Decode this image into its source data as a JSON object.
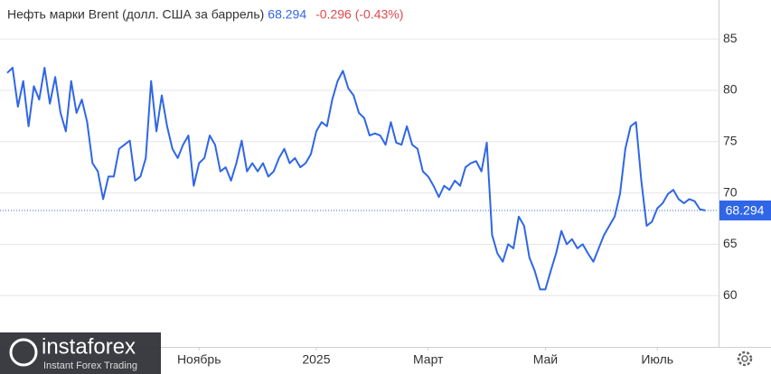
{
  "chart_data": {
    "type": "line",
    "title": "Нефть марки Brent (долл. США за баррель)",
    "last_price": "68.294",
    "change": "-0.296 (-0.43%)",
    "price_line": 68.294,
    "x": [
      0,
      1,
      2,
      3,
      4,
      5,
      6,
      7,
      8,
      9,
      10,
      11,
      12,
      13,
      14,
      15,
      16,
      17,
      18,
      19,
      20,
      21,
      22,
      23,
      24,
      25,
      26,
      27,
      28,
      29,
      30,
      31,
      32,
      33,
      34,
      35,
      36,
      37,
      38,
      39,
      40,
      41,
      42,
      43,
      44,
      45,
      46,
      47,
      48,
      49,
      50,
      51,
      52,
      53,
      54,
      55,
      56,
      57,
      58,
      59,
      60,
      61,
      62,
      63,
      64,
      65,
      66,
      67,
      68,
      69,
      70,
      71,
      72,
      73,
      74,
      75,
      76,
      77,
      78,
      79,
      80,
      81,
      82,
      83,
      84,
      85,
      86,
      87,
      88,
      89,
      90,
      91,
      92,
      93,
      94,
      95,
      96,
      97,
      98,
      99,
      100,
      101,
      102,
      103,
      104,
      105,
      106,
      107,
      108,
      109,
      110,
      111,
      112,
      113,
      114,
      115,
      116,
      117,
      118,
      119,
      120,
      121,
      122,
      123,
      124,
      125,
      126,
      127,
      128,
      129,
      130,
      131
    ],
    "series": [
      {
        "name": "Brent",
        "color": "#2f66e8",
        "values": [
          81.7,
          82.2,
          78.4,
          80.9,
          76.5,
          80.4,
          79.1,
          82.2,
          78.7,
          81.3,
          77.8,
          76.0,
          80.9,
          77.8,
          79.1,
          76.9,
          72.9,
          72.1,
          69.4,
          71.6,
          71.6,
          74.3,
          74.7,
          75.1,
          71.2,
          71.6,
          73.4,
          80.9,
          76.0,
          79.5,
          76.5,
          74.3,
          73.4,
          74.7,
          75.6,
          70.7,
          72.9,
          73.4,
          75.6,
          74.7,
          72.1,
          72.5,
          71.2,
          72.9,
          75.1,
          72.1,
          72.9,
          72.1,
          72.9,
          71.6,
          72.1,
          73.4,
          74.3,
          72.9,
          73.4,
          72.5,
          72.9,
          73.8,
          76.0,
          76.9,
          76.5,
          79.1,
          80.9,
          81.9,
          80.2,
          79.5,
          77.8,
          77.3,
          75.6,
          75.8,
          75.6,
          74.7,
          76.9,
          74.9,
          74.7,
          76.5,
          74.7,
          74.3,
          72.1,
          71.6,
          70.7,
          69.6,
          70.7,
          70.3,
          71.2,
          70.7,
          72.5,
          72.9,
          73.1,
          72.1,
          74.9,
          65.9,
          64.1,
          63.3,
          65.0,
          64.6,
          67.7,
          66.8,
          63.7,
          62.4,
          60.6,
          60.6,
          62.4,
          64.1,
          66.3,
          65.0,
          65.5,
          64.6,
          65.0,
          64.1,
          63.3,
          64.6,
          65.9,
          66.8,
          67.7,
          69.9,
          74.3,
          76.5,
          76.9,
          71.2,
          66.8,
          67.2,
          68.5,
          69.0,
          69.9,
          70.3,
          69.4,
          69.0,
          69.4,
          69.2,
          68.4,
          68.3
        ]
      }
    ],
    "xlim": [
      -1.36,
      133.5
    ],
    "xticks": [
      {
        "value": 36,
        "label": "Ноябрь"
      },
      {
        "value": 58,
        "label": "2025"
      },
      {
        "value": 79,
        "label": "Март"
      },
      {
        "value": 101,
        "label": "Май"
      },
      {
        "value": 122,
        "label": "Июль"
      }
    ],
    "ylim": [
      55,
      88.8
    ],
    "yticks": [
      60,
      65,
      70,
      75,
      80,
      85
    ],
    "grid": true,
    "logo": {
      "name": "instaforex",
      "tagline": "Instant Forex Trading"
    }
  }
}
